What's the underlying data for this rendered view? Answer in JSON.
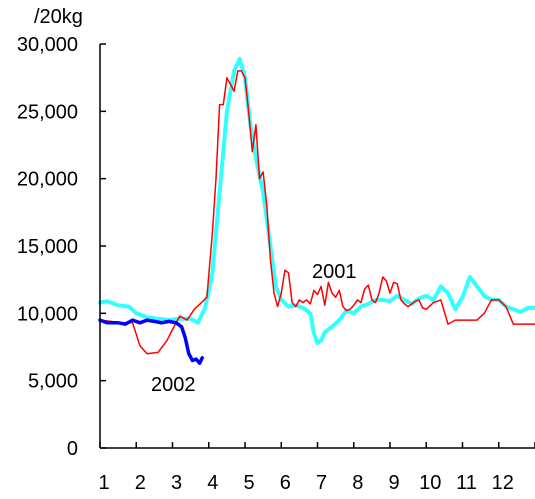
{
  "chart_data": {
    "type": "line",
    "y_unit_label": "/20kg",
    "ylim": [
      0,
      30000
    ],
    "xlim": [
      1,
      13
    ],
    "y_ticks": [
      0,
      5000,
      10000,
      15000,
      20000,
      25000,
      30000
    ],
    "y_tick_labels": [
      "0",
      "5,000",
      "10,000",
      "15,000",
      "20,000",
      "25,000",
      "30,000"
    ],
    "x_ticks": [
      1,
      2,
      3,
      4,
      5,
      6,
      7,
      8,
      9,
      10,
      11,
      12
    ],
    "x_tick_labels": [
      "1",
      "2",
      "3",
      "4",
      "5",
      "6",
      "7",
      "8",
      "9",
      "10",
      "11",
      "12"
    ],
    "grid": false,
    "series": [
      {
        "name": "2001",
        "color": "#ff0000",
        "x": [
          1.0,
          1.3,
          1.6,
          1.9,
          2.1,
          2.3,
          2.6,
          2.85,
          3.0,
          3.2,
          3.4,
          3.6,
          3.8,
          3.95,
          4.1,
          4.2,
          4.3,
          4.4,
          4.5,
          4.6,
          4.7,
          4.8,
          4.9,
          5.0,
          5.1,
          5.2,
          5.3,
          5.4,
          5.5,
          5.6,
          5.7,
          5.8,
          5.9,
          6.0,
          6.1,
          6.2,
          6.3,
          6.4,
          6.5,
          6.6,
          6.7,
          6.8,
          6.9,
          7.0,
          7.1,
          7.2,
          7.3,
          7.4,
          7.5,
          7.6,
          7.7,
          7.8,
          7.9,
          8.0,
          8.1,
          8.2,
          8.3,
          8.4,
          8.5,
          8.6,
          8.7,
          8.8,
          8.9,
          9.0,
          9.1,
          9.2,
          9.3,
          9.4,
          9.5,
          9.6,
          9.7,
          9.8,
          9.9,
          10.0,
          10.2,
          10.4,
          10.6,
          10.8,
          11.0,
          11.2,
          11.4,
          11.6,
          11.8,
          12.0,
          12.2,
          12.4,
          12.6,
          12.8,
          13.0
        ],
        "y": [
          9500,
          9400,
          9300,
          9300,
          7600,
          7000,
          7100,
          8000,
          8800,
          9800,
          9500,
          10300,
          10800,
          11200,
          16000,
          20000,
          25500,
          25500,
          27500,
          27000,
          26500,
          28000,
          28000,
          27500,
          25000,
          22000,
          24000,
          20000,
          20500,
          18000,
          14000,
          11500,
          10500,
          11500,
          13200,
          13000,
          10800,
          10500,
          11000,
          10800,
          11000,
          10700,
          11700,
          11400,
          12000,
          10600,
          12300,
          11500,
          11200,
          11700,
          10500,
          10200,
          10300,
          10600,
          11000,
          10800,
          11800,
          12100,
          11000,
          10800,
          11500,
          12700,
          12400,
          11500,
          12300,
          12200,
          11000,
          10700,
          10500,
          10700,
          10900,
          11000,
          10400,
          10300,
          10800,
          11000,
          9200,
          9500,
          9500,
          9500,
          9500,
          10000,
          11000,
          11000,
          10500,
          9200,
          9200,
          9200,
          9200
        ]
      },
      {
        "name": "",
        "color": "#33ffff",
        "x": [
          1.0,
          1.2,
          1.5,
          1.8,
          2.0,
          2.3,
          2.6,
          2.9,
          3.2,
          3.5,
          3.7,
          3.9,
          4.1,
          4.3,
          4.5,
          4.7,
          4.85,
          5.0,
          5.15,
          5.3,
          5.5,
          5.7,
          5.85,
          6.0,
          6.2,
          6.4,
          6.6,
          6.8,
          6.9,
          7.0,
          7.1,
          7.2,
          7.4,
          7.6,
          7.8,
          8.0,
          8.2,
          8.4,
          8.6,
          8.8,
          9.0,
          9.2,
          9.4,
          9.6,
          9.8,
          10.0,
          10.2,
          10.4,
          10.6,
          10.8,
          11.0,
          11.2,
          11.4,
          11.6,
          11.8,
          12.0,
          12.2,
          12.4,
          12.6,
          12.8,
          13.0
        ],
        "y": [
          10800,
          10900,
          10600,
          10500,
          10000,
          9700,
          9600,
          9500,
          9600,
          9600,
          9300,
          10400,
          13000,
          19000,
          25000,
          28000,
          28900,
          27500,
          24000,
          21500,
          19000,
          15000,
          12000,
          11000,
          10500,
          10600,
          10400,
          10000,
          8500,
          7800,
          8000,
          8600,
          9000,
          9500,
          10200,
          10000,
          10500,
          10700,
          11000,
          11000,
          10900,
          11300,
          11000,
          10700,
          11100,
          11300,
          11000,
          12000,
          11500,
          10300,
          11200,
          12700,
          12000,
          11300,
          11000,
          11000,
          10500,
          10300,
          10100,
          10400,
          10400
        ]
      },
      {
        "name": "2002",
        "color": "#0000ff",
        "x": [
          1.0,
          1.2,
          1.5,
          1.7,
          1.9,
          2.1,
          2.3,
          2.5,
          2.7,
          2.9,
          3.1,
          3.25,
          3.35,
          3.45,
          3.55,
          3.65,
          3.75,
          3.82
        ],
        "y": [
          9500,
          9300,
          9300,
          9200,
          9500,
          9300,
          9500,
          9400,
          9300,
          9400,
          9300,
          9000,
          8200,
          7000,
          6500,
          6600,
          6300,
          6700
        ]
      }
    ]
  }
}
